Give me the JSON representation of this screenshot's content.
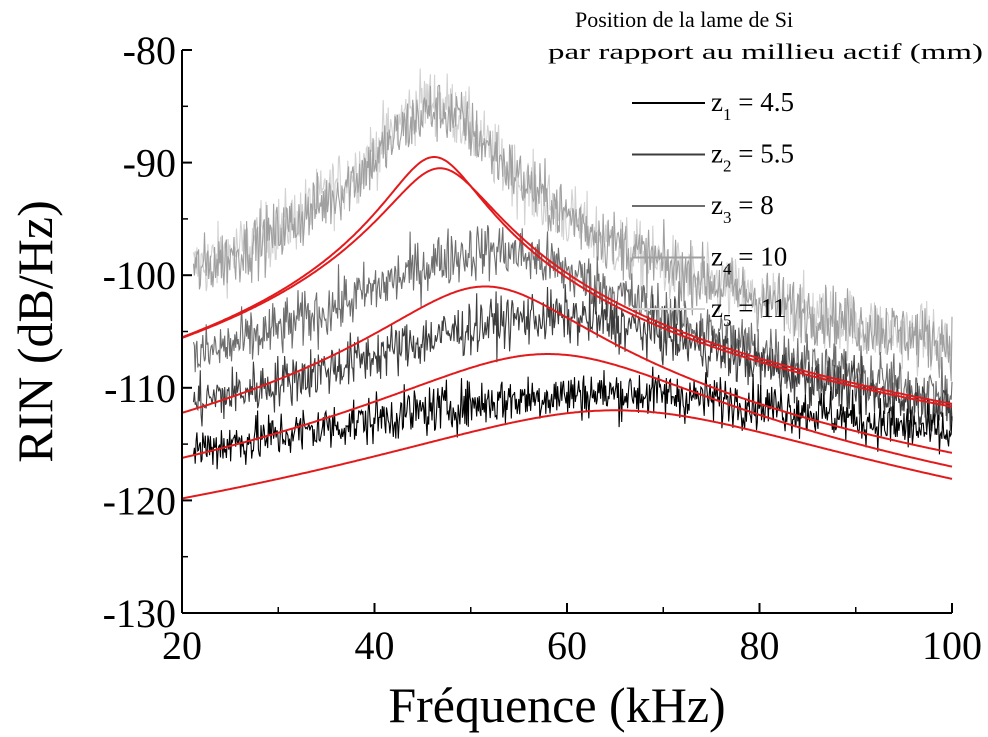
{
  "chart_data": {
    "type": "line",
    "xlabel": "Fréquence (kHz)",
    "ylabel": "RIN (dB/Hz)",
    "xlim": [
      20,
      100
    ],
    "ylim": [
      -130,
      -80
    ],
    "xticks": [
      20,
      40,
      60,
      80,
      100
    ],
    "yticks": [
      -80,
      -90,
      -100,
      -110,
      -120,
      -130
    ],
    "grid": false,
    "legend": {
      "placement": "top-right",
      "title_line1": "Position de la lame de Si",
      "title_line2": "par rapport au millieu actif (mm)",
      "entries": [
        {
          "sym": "z",
          "sub": "1",
          "text": " = 4.5",
          "color": "#000000"
        },
        {
          "sym": "z",
          "sub": "2",
          "text": " = 5.5",
          "color": "#3c3c3c"
        },
        {
          "sym": "z",
          "sub": "3",
          "text": " = 8",
          "color": "#6e6e6e"
        },
        {
          "sym": "z",
          "sub": "4",
          "text": " = 10",
          "color": "#a0a0a0"
        },
        {
          "sym": "z",
          "sub": "5",
          "text": " = 11",
          "color": "#d2d2d2"
        }
      ]
    },
    "fit_color": "#e31a1c",
    "measured_series": [
      {
        "name": "z1 = 4.5",
        "color": "#000000",
        "peak_khz": 65,
        "peak_db": -111.5,
        "width_khz": 30,
        "offset_db": 1.0,
        "noise_db": 1.1
      },
      {
        "name": "z2 = 5.5",
        "color": "#3c3c3c",
        "peak_khz": 58.5,
        "peak_db": -105.5,
        "width_khz": 17,
        "offset_db": 1.8,
        "noise_db": 1.2
      },
      {
        "name": "z3 = 8",
        "color": "#6e6e6e",
        "peak_khz": 52,
        "peak_db": -100,
        "width_khz": 11,
        "offset_db": 2.2,
        "noise_db": 1.3
      },
      {
        "name": "z4 = 10",
        "color": "#a0a0a0",
        "peak_khz": 46.5,
        "peak_db": -88,
        "width_khz": 5,
        "offset_db": 2.6,
        "noise_db": 1.4
      },
      {
        "name": "z5 = 11",
        "color": "#d2d2d2",
        "peak_khz": 46,
        "peak_db": -87.5,
        "width_khz": 4.5,
        "offset_db": 3.0,
        "noise_db": 1.5
      }
    ],
    "fit_series": [
      {
        "peak_khz": 46.2,
        "peak_db": -89.5,
        "width_khz": 4.2
      },
      {
        "peak_khz": 46.8,
        "peak_db": -90.5,
        "width_khz": 4.8
      },
      {
        "peak_khz": 51.5,
        "peak_db": -101,
        "width_khz": 9.0
      },
      {
        "peak_khz": 58,
        "peak_db": -107,
        "width_khz": 14.0
      },
      {
        "peak_khz": 65,
        "peak_db": -112,
        "width_khz": 20.0
      }
    ]
  }
}
